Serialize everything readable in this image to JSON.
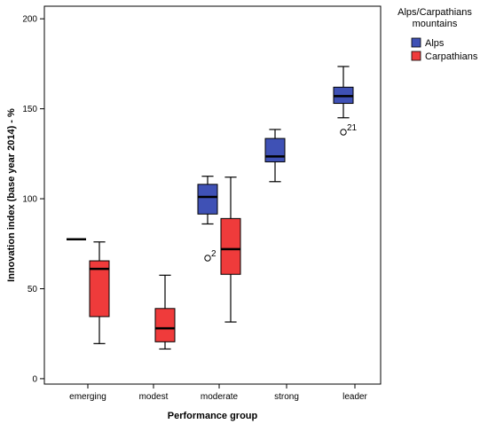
{
  "chart_data": {
    "type": "boxplot",
    "xlabel": "Performance group",
    "ylabel": "Innovation index (base year 2014) - %",
    "ylim": [
      -3,
      207
    ],
    "yticks": [
      0,
      50,
      100,
      150,
      200
    ],
    "categories": [
      "emerging",
      "modest",
      "moderate",
      "strong",
      "leader"
    ],
    "grid": false,
    "legend": {
      "title_lines": [
        "Alps/Carpathians",
        "mountains"
      ],
      "placement": "right"
    },
    "series": [
      {
        "name": "Alps",
        "color": "#3f51b5",
        "boxes": [
          {
            "category": "emerging",
            "min": 77.5,
            "q1": 77.5,
            "median": 77.5,
            "q3": 77.5,
            "max": 77.5,
            "outliers": []
          },
          {
            "category": "modest",
            "min": null,
            "q1": null,
            "median": null,
            "q3": null,
            "max": null,
            "outliers": []
          },
          {
            "category": "moderate",
            "min": 86,
            "q1": 91.5,
            "median": 101,
            "q3": 108,
            "max": 112.5,
            "outliers": [
              {
                "value": 67,
                "label": "2"
              }
            ]
          },
          {
            "category": "strong",
            "min": 109.5,
            "q1": 120.5,
            "median": 123.5,
            "q3": 133.5,
            "max": 138.5,
            "outliers": []
          },
          {
            "category": "leader",
            "min": 145,
            "q1": 153,
            "median": 157,
            "q3": 162,
            "max": 173.5,
            "outliers": [
              {
                "value": 137,
                "label": "21"
              }
            ]
          }
        ]
      },
      {
        "name": "Carpathians",
        "color": "#ef3b3b",
        "boxes": [
          {
            "category": "emerging",
            "min": 19.5,
            "q1": 34.5,
            "median": 61,
            "q3": 65.5,
            "max": 76,
            "outliers": []
          },
          {
            "category": "modest",
            "min": 16.5,
            "q1": 20.5,
            "median": 28,
            "q3": 39,
            "max": 57.5,
            "outliers": []
          },
          {
            "category": "moderate",
            "min": 31.5,
            "q1": 58,
            "median": 72,
            "q3": 89,
            "max": 112,
            "outliers": []
          },
          {
            "category": "strong",
            "min": null,
            "q1": null,
            "median": null,
            "q3": null,
            "max": null,
            "outliers": []
          },
          {
            "category": "leader",
            "min": null,
            "q1": null,
            "median": null,
            "q3": null,
            "max": null,
            "outliers": []
          }
        ]
      }
    ]
  }
}
